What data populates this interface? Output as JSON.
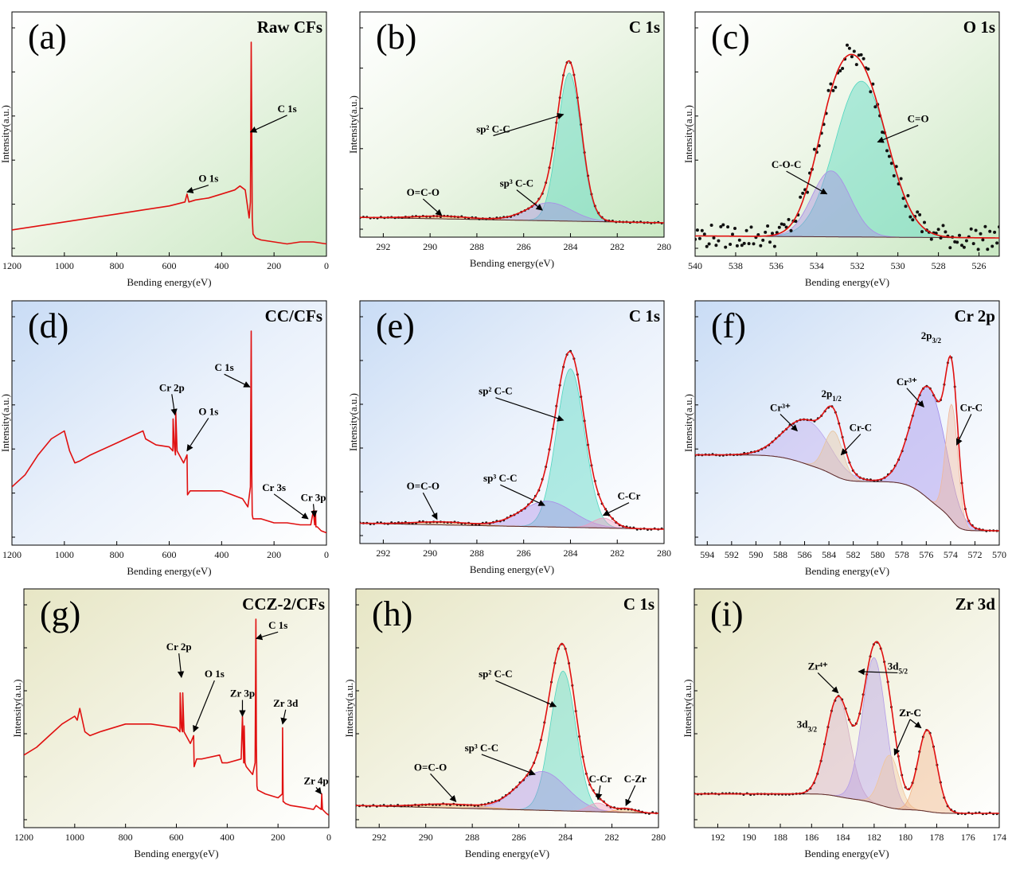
{
  "chart_data": [
    {
      "id": "a",
      "type": "line",
      "panel_label": "(a)",
      "title": "Raw CFs",
      "xlabel": "Bending energy(eV)",
      "ylabel": "Intensity(a.u.)",
      "xlim": [
        1200,
        0
      ],
      "x_ticks": [
        1200,
        1000,
        800,
        600,
        400,
        200,
        0
      ],
      "background": "green",
      "series": [
        {
          "color": "#e01010",
          "x": [
            1200,
            1100,
            1000,
            900,
            800,
            700,
            600,
            540,
            532,
            525,
            500,
            450,
            400,
            350,
            330,
            310,
            295,
            290,
            287,
            285,
            283,
            280,
            270,
            250,
            200,
            150,
            100,
            50,
            0
          ],
          "y": [
            0.06,
            0.08,
            0.1,
            0.12,
            0.14,
            0.16,
            0.18,
            0.2,
            0.24,
            0.2,
            0.21,
            0.22,
            0.24,
            0.26,
            0.28,
            0.26,
            0.12,
            0.2,
            1.0,
            0.55,
            0.12,
            0.04,
            0.02,
            0.01,
            0.0,
            -0.01,
            0.0,
            0.0,
            -0.01
          ]
        }
      ],
      "annotations": [
        {
          "text": "C 1s",
          "x": 150,
          "y": 0.65,
          "arrow_to": [
            290,
            0.55
          ]
        },
        {
          "text": "O 1s",
          "x": 450,
          "y": 0.3,
          "arrow_to": [
            532,
            0.25
          ]
        }
      ]
    },
    {
      "id": "b",
      "type": "line",
      "panel_label": "(b)",
      "title": "C 1s",
      "xlabel": "Bending energy(eV)",
      "ylabel": "Intensity(a.u.)",
      "xlim": [
        293,
        280
      ],
      "x_ticks": [
        292,
        290,
        288,
        286,
        284,
        282,
        280
      ],
      "background": "green",
      "components": [
        {
          "name": "sp² C-C",
          "center": 284.05,
          "width": 0.5,
          "height": 0.82,
          "color": "#4fd6bf"
        },
        {
          "name": "sp³ C-C",
          "center": 284.9,
          "width": 0.95,
          "height": 0.1,
          "color": "#a98be8"
        },
        {
          "name": "O=C-O",
          "center": 289.5,
          "width": 1.2,
          "height": 0.015,
          "color": "#f0b060"
        }
      ],
      "baseline": {
        "start": 0.03,
        "end": 0.0
      },
      "annotations": [
        {
          "text": "sp² C-C",
          "x": 287.3,
          "y": 0.5,
          "arrow_to": [
            284.3,
            0.6
          ]
        },
        {
          "text": "sp³ C-C",
          "x": 286.3,
          "y": 0.2,
          "arrow_to": [
            285.2,
            0.07
          ]
        },
        {
          "text": "O=C-O",
          "x": 290.3,
          "y": 0.15,
          "arrow_to": [
            289.5,
            0.04
          ]
        }
      ]
    },
    {
      "id": "c",
      "type": "scatter",
      "panel_label": "(c)",
      "title": "O 1s",
      "xlabel": "Bending energy(eV)",
      "ylabel": "Intensity(a.u.)",
      "xlim": [
        540,
        525
      ],
      "x_ticks": [
        540,
        538,
        536,
        534,
        532,
        530,
        528,
        526
      ],
      "background": "green",
      "components": [
        {
          "name": "C=O",
          "center": 531.8,
          "width": 1.3,
          "height": 0.78,
          "color": "#4fd6bf"
        },
        {
          "name": "C-O-C",
          "center": 533.3,
          "width": 0.95,
          "height": 0.33,
          "color": "#a98be8"
        }
      ],
      "baseline": {
        "start": 0.03,
        "end": 0.02
      },
      "noise": 0.06,
      "annotations": [
        {
          "text": "C=O",
          "x": 529.0,
          "y": 0.6,
          "arrow_to": [
            531.0,
            0.5
          ]
        },
        {
          "text": "C-O-C",
          "x": 535.5,
          "y": 0.37,
          "arrow_to": [
            533.5,
            0.24
          ]
        }
      ]
    },
    {
      "id": "d",
      "type": "line",
      "panel_label": "(d)",
      "title": "CC/CFs",
      "xlabel": "Bending energy(eV)",
      "ylabel": "Intensity(a.u.)",
      "xlim": [
        1200,
        0
      ],
      "x_ticks": [
        1200,
        1000,
        800,
        600,
        400,
        200,
        0
      ],
      "background": "blue",
      "series": [
        {
          "color": "#e01010",
          "x": [
            1200,
            1150,
            1100,
            1050,
            1000,
            980,
            960,
            940,
            900,
            800,
            700,
            690,
            650,
            600,
            586,
            585,
            580,
            576,
            575,
            570,
            545,
            532,
            530,
            520,
            500,
            400,
            320,
            300,
            290,
            287,
            285,
            283,
            280,
            250,
            200,
            150,
            100,
            60,
            50,
            45,
            42,
            40,
            35,
            20,
            0
          ],
          "y": [
            0.22,
            0.28,
            0.38,
            0.46,
            0.5,
            0.4,
            0.34,
            0.35,
            0.38,
            0.44,
            0.5,
            0.46,
            0.43,
            0.42,
            0.4,
            0.56,
            0.42,
            0.38,
            0.6,
            0.4,
            0.34,
            0.38,
            0.18,
            0.2,
            0.2,
            0.2,
            0.16,
            0.12,
            0.22,
            1.0,
            0.3,
            0.08,
            0.06,
            0.06,
            0.04,
            0.04,
            0.03,
            0.03,
            0.1,
            0.03,
            0.1,
            0.02,
            0.02,
            0.0,
            -0.01
          ]
        }
      ],
      "annotations": [
        {
          "text": "C 1s",
          "x": 390,
          "y": 0.8,
          "arrow_to": [
            292,
            0.72
          ]
        },
        {
          "text": "Cr 2p",
          "x": 590,
          "y": 0.7,
          "arrow_to": [
            578,
            0.58
          ]
        },
        {
          "text": "O 1s",
          "x": 450,
          "y": 0.58,
          "arrow_to": [
            532,
            0.4
          ]
        },
        {
          "text": "Cr 3s",
          "x": 200,
          "y": 0.2,
          "arrow_to": [
            70,
            0.06
          ]
        },
        {
          "text": "Cr 3p",
          "x": 50,
          "y": 0.15,
          "arrow_to": [
            45,
            0.07
          ]
        }
      ]
    },
    {
      "id": "e",
      "type": "line",
      "panel_label": "(e)",
      "title": "C 1s",
      "xlabel": "Bending energy(eV)",
      "ylabel": "Intensity(a.u.)",
      "xlim": [
        293,
        280
      ],
      "x_ticks": [
        292,
        290,
        288,
        286,
        284,
        282,
        280
      ],
      "background": "blue",
      "components": [
        {
          "name": "sp² C-C",
          "center": 284.0,
          "width": 0.6,
          "height": 0.8,
          "color": "#4fd6bf"
        },
        {
          "name": "sp³ C-C",
          "center": 285.0,
          "width": 1.1,
          "height": 0.13,
          "color": "#a98be8"
        },
        {
          "name": "C-Cr",
          "center": 282.6,
          "width": 0.45,
          "height": 0.05,
          "color": "#f09abf"
        },
        {
          "name": "O=C-O",
          "center": 289.5,
          "width": 1.2,
          "height": 0.015,
          "color": "#f0b060"
        }
      ],
      "baseline": {
        "start": 0.03,
        "end": 0.0
      },
      "annotations": [
        {
          "text": "sp² C-C",
          "x": 287.2,
          "y": 0.68,
          "arrow_to": [
            284.3,
            0.55
          ]
        },
        {
          "text": "sp³ C-C",
          "x": 287.0,
          "y": 0.24,
          "arrow_to": [
            285.1,
            0.12
          ]
        },
        {
          "text": "O=C-O",
          "x": 290.3,
          "y": 0.2,
          "arrow_to": [
            289.7,
            0.05
          ]
        },
        {
          "text": "C-Cr",
          "x": 281.5,
          "y": 0.15,
          "arrow_to": [
            282.6,
            0.07
          ]
        }
      ]
    },
    {
      "id": "f",
      "type": "line",
      "panel_label": "(f)",
      "title": "Cr 2p",
      "xlabel": "Bending energy(eV)",
      "ylabel": "Intensity(a.u.)",
      "xlim": [
        595,
        570
      ],
      "x_ticks": [
        594,
        592,
        590,
        588,
        586,
        584,
        582,
        580,
        578,
        576,
        574,
        572,
        570
      ],
      "background": "blue",
      "components": [
        {
          "name": "Cr³⁺ 2p1/2",
          "center": 585.8,
          "width": 1.9,
          "height": 0.22,
          "color": "#b9a6ec"
        },
        {
          "name": "Cr-C 2p1/2",
          "center": 583.6,
          "width": 0.75,
          "height": 0.22,
          "color": "#e8c39c"
        },
        {
          "name": "Cr³⁺ 2p3/2",
          "center": 575.8,
          "width": 1.4,
          "height": 0.56,
          "color": "#9c87ea"
        },
        {
          "name": "Cr-C 2p3/2",
          "center": 573.9,
          "width": 0.5,
          "height": 0.58,
          "color": "#f0b79a"
        }
      ],
      "baseline": {
        "type": "shirley",
        "start": 0.38,
        "end": 0.0
      },
      "annotations": [
        {
          "text": "2p",
          "sub": "3/2",
          "x": 575.6,
          "y": 0.96
        },
        {
          "text": "Cr³⁺",
          "x": 577.6,
          "y": 0.73,
          "arrow_to": [
            576.2,
            0.62
          ]
        },
        {
          "text": "Cr-C",
          "x": 572.3,
          "y": 0.6,
          "arrow_to": [
            573.5,
            0.43
          ]
        },
        {
          "text": "Cr³⁺",
          "x": 588.0,
          "y": 0.6,
          "arrow_to": [
            586.6,
            0.5
          ]
        },
        {
          "text": "2p",
          "sub": "1/2",
          "x": 583.8,
          "y": 0.67
        },
        {
          "text": "Cr-C",
          "x": 581.4,
          "y": 0.5,
          "arrow_to": [
            583.0,
            0.38
          ]
        }
      ]
    },
    {
      "id": "g",
      "type": "line",
      "panel_label": "(g)",
      "title": "CCZ-2/CFs",
      "xlabel": "Bending energy(eV)",
      "ylabel": "Intensity(a.u.)",
      "xlim": [
        1200,
        0
      ],
      "x_ticks": [
        1200,
        1000,
        800,
        600,
        400,
        200,
        0
      ],
      "background": "olive",
      "series": [
        {
          "color": "#e01010",
          "x": [
            1200,
            1150,
            1100,
            1050,
            1000,
            990,
            980,
            960,
            940,
            900,
            800,
            700,
            600,
            586,
            585,
            580,
            576,
            575,
            570,
            545,
            532,
            530,
            520,
            500,
            430,
            420,
            400,
            345,
            340,
            335,
            333,
            330,
            325,
            300,
            290,
            287,
            285,
            283,
            280,
            250,
            200,
            183,
            182,
            180,
            178,
            170,
            150,
            100,
            60,
            50,
            30,
            28,
            25,
            10,
            0
          ],
          "y": [
            0.3,
            0.34,
            0.4,
            0.46,
            0.5,
            0.48,
            0.54,
            0.42,
            0.4,
            0.42,
            0.46,
            0.46,
            0.44,
            0.42,
            0.62,
            0.44,
            0.42,
            0.62,
            0.42,
            0.36,
            0.4,
            0.24,
            0.28,
            0.28,
            0.3,
            0.26,
            0.26,
            0.28,
            0.5,
            0.26,
            0.45,
            0.26,
            0.24,
            0.2,
            0.26,
            1.0,
            0.35,
            0.14,
            0.12,
            0.1,
            0.08,
            0.1,
            0.44,
            0.06,
            0.06,
            0.05,
            0.04,
            0.03,
            0.02,
            0.04,
            0.02,
            0.1,
            0.02,
            0.0,
            -0.01
          ]
        }
      ],
      "annotations": [
        {
          "text": "C 1s",
          "x": 200,
          "y": 0.95,
          "arrow_to": [
            286,
            0.9
          ]
        },
        {
          "text": "Cr 2p",
          "x": 590,
          "y": 0.84,
          "arrow_to": [
            580,
            0.7
          ]
        },
        {
          "text": "O 1s",
          "x": 450,
          "y": 0.7,
          "arrow_to": [
            532,
            0.42
          ]
        },
        {
          "text": "Zr 3p",
          "x": 340,
          "y": 0.6,
          "arrow_to": [
            340,
            0.5
          ]
        },
        {
          "text": "Zr 3d",
          "x": 170,
          "y": 0.55,
          "arrow_to": [
            182,
            0.46
          ]
        },
        {
          "text": "Zr 4p",
          "x": 50,
          "y": 0.15,
          "arrow_to": [
            30,
            0.1
          ]
        }
      ]
    },
    {
      "id": "h",
      "type": "line",
      "panel_label": "(h)",
      "title": "C 1s",
      "xlabel": "Bending energy(eV)",
      "ylabel": "Intensity(a.u.)",
      "xlim": [
        293,
        280
      ],
      "x_ticks": [
        292,
        290,
        288,
        286,
        284,
        282,
        280
      ],
      "background": "olive",
      "components": [
        {
          "name": "sp² C-C",
          "center": 284.1,
          "width": 0.55,
          "height": 0.72,
          "color": "#4fd6bf"
        },
        {
          "name": "sp³ C-C",
          "center": 285.0,
          "width": 1.05,
          "height": 0.2,
          "color": "#a98be8"
        },
        {
          "name": "C-Cr",
          "center": 282.6,
          "width": 0.4,
          "height": 0.045,
          "color": "#f09abf"
        },
        {
          "name": "C-Zr",
          "center": 281.4,
          "width": 0.4,
          "height": 0.02,
          "color": "#f0b060"
        },
        {
          "name": "O=C-O",
          "center": 289.0,
          "width": 1.3,
          "height": 0.02,
          "color": "#f0b060"
        }
      ],
      "baseline": {
        "start": 0.04,
        "end": 0.0
      },
      "annotations": [
        {
          "text": "sp² C-C",
          "x": 287.0,
          "y": 0.7,
          "arrow_to": [
            284.4,
            0.55
          ]
        },
        {
          "text": "sp³ C-C",
          "x": 287.6,
          "y": 0.32,
          "arrow_to": [
            285.3,
            0.2
          ]
        },
        {
          "text": "O=C-O",
          "x": 289.8,
          "y": 0.22,
          "arrow_to": [
            288.7,
            0.06
          ]
        },
        {
          "text": "C-Cr",
          "x": 282.5,
          "y": 0.16,
          "arrow_to": [
            282.6,
            0.07
          ]
        },
        {
          "text": "C-Zr",
          "x": 281.0,
          "y": 0.16,
          "arrow_to": [
            281.4,
            0.04
          ]
        }
      ]
    },
    {
      "id": "i",
      "type": "line",
      "panel_label": "(i)",
      "title": "Zr 3d",
      "xlabel": "Bending energy(eV)",
      "ylabel": "Intensity(a.u.)",
      "xlim": [
        193.5,
        174
      ],
      "x_ticks": [
        192,
        190,
        188,
        186,
        184,
        182,
        180,
        178,
        176,
        174
      ],
      "background": "olive",
      "components": [
        {
          "name": "Zr⁴⁺ 3d3/2",
          "center": 184.3,
          "width": 0.75,
          "height": 0.51,
          "color": "#d4a9c2"
        },
        {
          "name": "Zr⁴⁺ 3d5/2",
          "center": 182.0,
          "width": 0.75,
          "height": 0.75,
          "color": "#b39ce8"
        },
        {
          "name": "Zr-C 3d3/2",
          "center": 181.0,
          "width": 0.6,
          "height": 0.27,
          "color": "#f0c59a"
        },
        {
          "name": "Zr-C 3d5/2",
          "center": 178.6,
          "width": 0.6,
          "height": 0.42,
          "color": "#f0b080"
        }
      ],
      "baseline": {
        "type": "shirley",
        "start": 0.1,
        "end": 0.0
      },
      "annotations": [
        {
          "text": "Zr⁴⁺",
          "x": 185.6,
          "y": 0.74,
          "arrow_to": [
            184.3,
            0.62
          ]
        },
        {
          "text": "3d",
          "sub": "5/2",
          "x": 180.5,
          "y": 0.74,
          "arrow_to": [
            183.0,
            0.73
          ]
        },
        {
          "text": "3d",
          "sub": "3/2",
          "x": 186.3,
          "y": 0.44
        },
        {
          "text": "Zr-C",
          "x": 179.7,
          "y": 0.5,
          "arrow_to": [
            180.7,
            0.3
          ]
        },
        {
          "text": "Zr-C",
          "x": 179.7,
          "y": 0.5,
          "arrow_to": [
            179.0,
            0.44
          ]
        }
      ]
    }
  ]
}
